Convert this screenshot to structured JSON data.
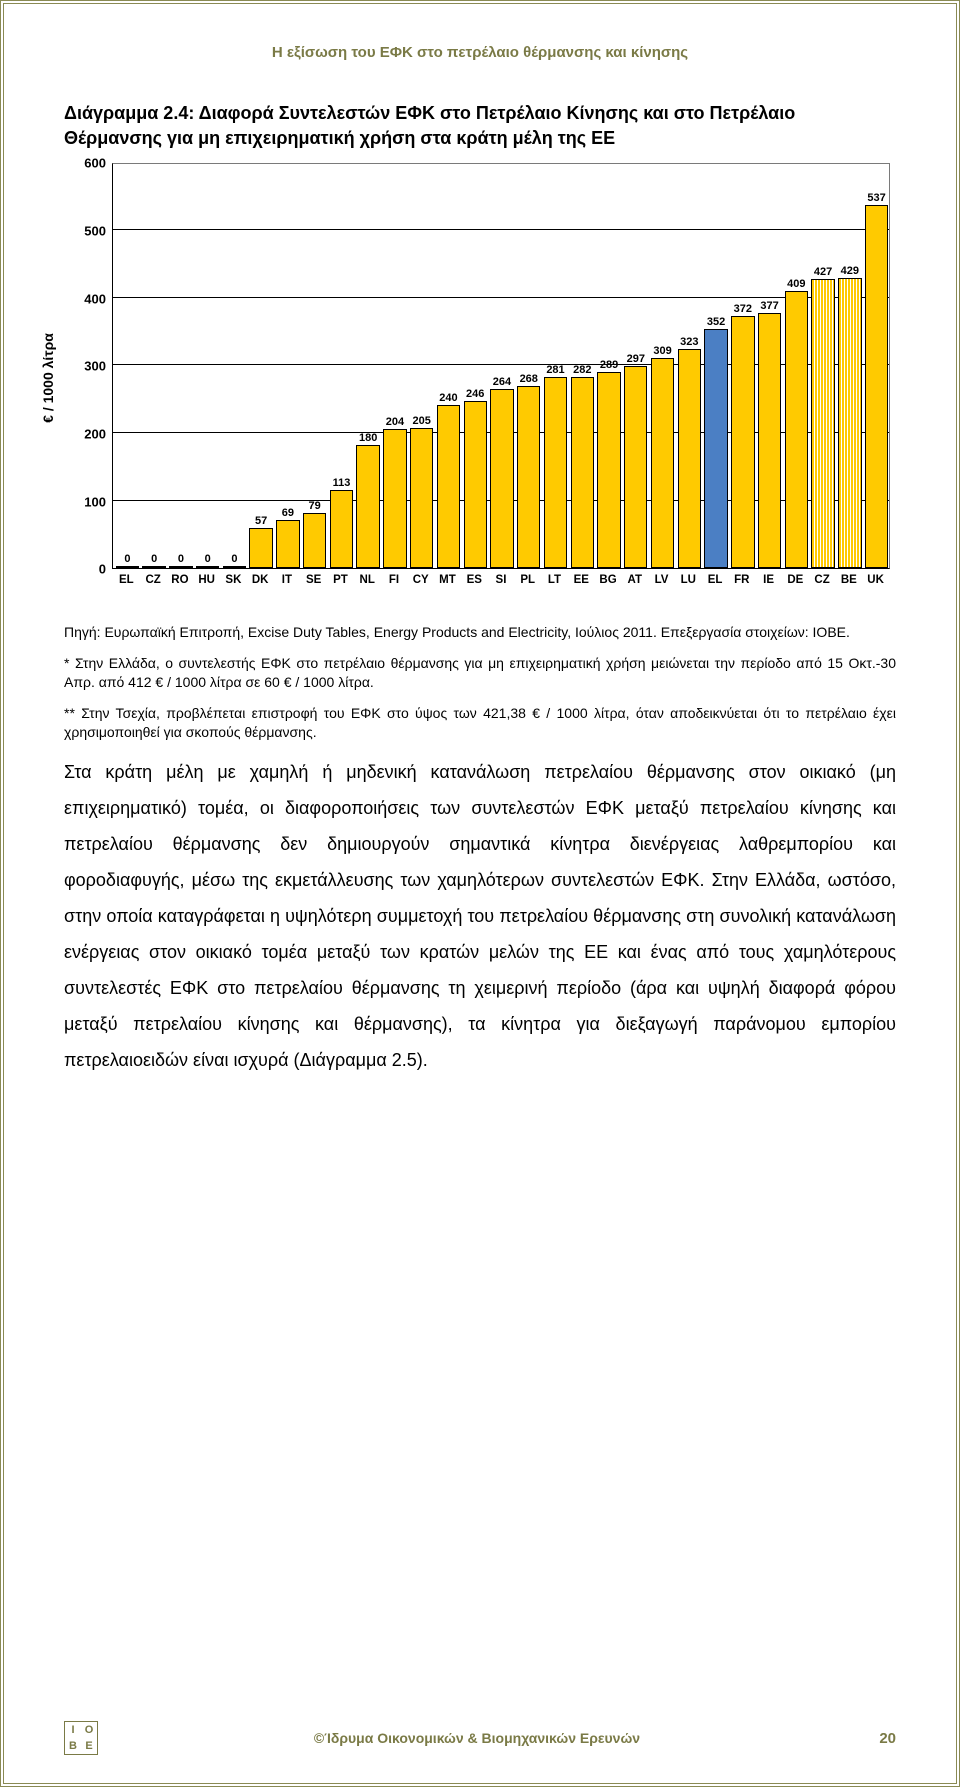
{
  "page": {
    "header_title": "Η εξίσωση του ΕΦΚ στο πετρέλαιο θέρμανσης και κίνησης",
    "footer_org": "©Ίδρυμα Οικονομικών & Βιομηχανικών Ερευνών",
    "page_number": "20",
    "logo_letters": [
      "I",
      "O",
      "B",
      "E"
    ]
  },
  "chart": {
    "type": "bar",
    "title": "Διάγραμμα 2.4: Διαφορά Συντελεστών ΕΦΚ στο Πετρέλαιο Κίνησης και στο Πετρέλαιο Θέρμανσης για μη επιχειρηματική χρήση στα κράτη μέλη της ΕΕ",
    "ylabel": "€ / 1000 λίτρα",
    "ylim": [
      0,
      600
    ],
    "ytick_step": 100,
    "yticks": [
      0,
      100,
      200,
      300,
      400,
      500,
      600
    ],
    "categories": [
      "EL",
      "CZ",
      "RO",
      "HU",
      "SK",
      "DK",
      "IT",
      "SE",
      "PT",
      "NL",
      "FI",
      "CY",
      "MT",
      "ES",
      "SI",
      "PL",
      "LT",
      "EE",
      "BG",
      "AT",
      "LV",
      "LU",
      "EL",
      "FR",
      "IE",
      "DE",
      "CZ",
      "BE",
      "UK"
    ],
    "values": [
      0,
      0,
      0,
      0,
      0,
      57,
      69,
      79,
      113,
      180,
      204,
      205,
      240,
      246,
      264,
      268,
      281,
      282,
      289,
      297,
      309,
      323,
      352,
      372,
      377,
      409,
      427,
      429,
      537
    ],
    "label_fontsize": 11,
    "axis_fontsize": 13,
    "title_fontsize": 18,
    "bar_color_default": "#ffca00",
    "bar_color_highlight": "#4b7fc4",
    "bar_pattern_indexes": [
      26,
      27
    ],
    "highlight_index": 22,
    "bar_border_color": "#000000",
    "grid_color": "#000000",
    "background_color": "#ffffff",
    "bar_width": 0.8
  },
  "texts": {
    "source": "Πηγή: Ευρωπαϊκή Επιτροπή, Excise Duty Tables, Energy Products and Electricity, Ιούλιος 2011. Επεξεργασία στοιχείων: ΙΟΒΕ.",
    "note1": "* Στην Ελλάδα, ο συντελεστής ΕΦΚ στο πετρέλαιο θέρμανσης για μη επιχειρηματική χρήση μειώνεται την περίοδο από 15 Οκτ.-30 Απρ. από 412 € / 1000 λίτρα σε 60 € / 1000 λίτρα.",
    "note2": "** Στην Τσεχία, προβλέπεται επιστροφή του ΕΦΚ στο ύψος των 421,38 € / 1000 λίτρα, όταν αποδεικνύεται ότι το πετρέλαιο έχει χρησιμοποιηθεί για σκοπούς θέρμανσης.",
    "paragraph": "Στα κράτη μέλη με χαμηλή ή μηδενική κατανάλωση πετρελαίου θέρμανσης στον οικιακό (μη επιχειρηματικό) τομέα, οι διαφοροποιήσεις των συντελεστών ΕΦΚ μεταξύ πετρελαίου κίνησης και πετρελαίου θέρμανσης δεν δημιουργούν σημαντικά κίνητρα διενέργειας λαθρεμπορίου και φοροδιαφυγής, μέσω της εκμετάλλευσης των χαμηλότερων συντελεστών ΕΦΚ. Στην Ελλάδα, ωστόσο, στην οποία καταγράφεται η υψηλότερη συμμετοχή του πετρελαίου θέρμανσης στη συνολική κατανάλωση ενέργειας στον οικιακό τομέα μεταξύ των κρατών μελών της ΕΕ και ένας από τους χαμηλότερους συντελεστές ΕΦΚ στο πετρελαίου θέρμανσης τη χειμερινή περίοδο (άρα και υψηλή διαφορά φόρου μεταξύ πετρελαίου κίνησης και θέρμανσης), τα κίνητρα για διεξαγωγή παράνομου εμπορίου πετρελαιοειδών είναι ισχυρά (Διάγραμμα 2.5)."
  }
}
